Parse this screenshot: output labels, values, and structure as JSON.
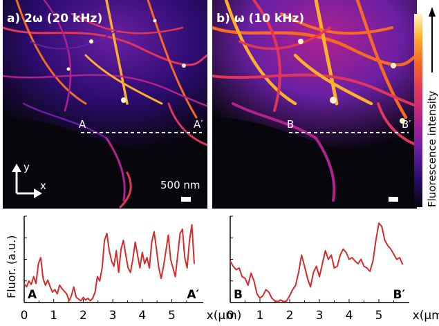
{
  "panels": {
    "a": {
      "title": "a) 2ω (20 kHz)",
      "scan_start": "A",
      "scan_end": "A′",
      "scalebar_text": "500 nm",
      "axis_y": "y",
      "axis_x": "x"
    },
    "b": {
      "title": "b) ω (10 kHz)",
      "scan_start": "B",
      "scan_end": "B′"
    }
  },
  "colorbar": {
    "label": "Fluorescence intensity",
    "colors": [
      "#08060d",
      "#2b0c6e",
      "#6a1fa3",
      "#b0228e",
      "#e1365a",
      "#f66a23",
      "#fdb02d",
      "#fff7c6"
    ]
  },
  "chart_data": [
    {
      "type": "line",
      "title": "",
      "xlabel": "x(μm)",
      "ylabel": "Fluor. (a.u.)",
      "start_label": "A",
      "end_label": "A′",
      "xlim": [
        0,
        5.9
      ],
      "ylim": [
        0,
        1
      ],
      "xticks": [
        "0",
        "1",
        "2",
        "3",
        "4",
        "5"
      ],
      "color": "#d42a2a",
      "x": [
        0.0,
        0.08,
        0.16,
        0.24,
        0.32,
        0.4,
        0.48,
        0.56,
        0.64,
        0.72,
        0.8,
        0.88,
        0.96,
        1.04,
        1.12,
        1.2,
        1.28,
        1.36,
        1.44,
        1.52,
        1.6,
        1.68,
        1.76,
        1.84,
        1.92,
        2.0,
        2.08,
        2.16,
        2.24,
        2.32,
        2.4,
        2.48,
        2.56,
        2.64,
        2.72,
        2.8,
        2.88,
        2.96,
        3.04,
        3.12,
        3.2,
        3.28,
        3.36,
        3.44,
        3.52,
        3.6,
        3.68,
        3.76,
        3.84,
        3.92,
        4.0,
        4.08,
        4.16,
        4.24,
        4.32,
        4.4,
        4.48,
        4.56,
        4.64,
        4.72,
        4.8,
        4.88,
        4.96,
        5.04,
        5.12,
        5.2,
        5.28,
        5.36,
        5.44,
        5.52,
        5.6,
        5.68,
        5.76
      ],
      "values": [
        0.22,
        0.18,
        0.25,
        0.21,
        0.3,
        0.22,
        0.45,
        0.52,
        0.28,
        0.2,
        0.26,
        0.18,
        0.12,
        0.15,
        0.1,
        0.2,
        0.16,
        0.13,
        0.1,
        0.02,
        0.08,
        0.18,
        0.06,
        0.04,
        0.02,
        0.06,
        0.03,
        0.05,
        0.02,
        0.05,
        0.12,
        0.3,
        0.25,
        0.4,
        0.72,
        0.8,
        0.6,
        0.48,
        0.42,
        0.6,
        0.35,
        0.62,
        0.72,
        0.55,
        0.4,
        0.35,
        0.5,
        0.7,
        0.55,
        0.4,
        0.58,
        0.45,
        0.52,
        0.4,
        0.7,
        0.82,
        0.62,
        0.4,
        0.28,
        0.42,
        0.6,
        0.78,
        0.5,
        0.4,
        0.3,
        0.55,
        0.8,
        0.85,
        0.52,
        0.4,
        0.72,
        0.9,
        0.45
      ]
    },
    {
      "type": "line",
      "title": "",
      "xlabel": "x(μm)",
      "ylabel": "",
      "start_label": "B",
      "end_label": "B′",
      "xlim": [
        0,
        5.9
      ],
      "ylim": [
        0,
        1
      ],
      "xticks": [
        "0",
        "1",
        "2",
        "3",
        "4",
        "5"
      ],
      "color": "#d42a2a",
      "x": [
        0.0,
        0.1,
        0.2,
        0.3,
        0.4,
        0.5,
        0.6,
        0.7,
        0.8,
        0.9,
        1.0,
        1.1,
        1.2,
        1.3,
        1.4,
        1.5,
        1.6,
        1.7,
        1.8,
        1.9,
        2.0,
        2.1,
        2.2,
        2.3,
        2.4,
        2.5,
        2.6,
        2.7,
        2.8,
        2.9,
        3.0,
        3.1,
        3.2,
        3.3,
        3.4,
        3.5,
        3.6,
        3.7,
        3.8,
        3.9,
        4.0,
        4.1,
        4.2,
        4.3,
        4.4,
        4.5,
        4.6,
        4.7,
        4.8,
        4.9,
        5.0,
        5.1,
        5.2,
        5.3,
        5.4,
        5.5,
        5.6,
        5.7,
        5.8
      ],
      "values": [
        0.48,
        0.42,
        0.38,
        0.4,
        0.3,
        0.28,
        0.2,
        0.34,
        0.25,
        0.1,
        0.05,
        0.08,
        0.15,
        0.12,
        0.05,
        0.02,
        0.01,
        0.03,
        0.01,
        0.02,
        0.08,
        0.15,
        0.2,
        0.35,
        0.55,
        0.42,
        0.28,
        0.18,
        0.35,
        0.42,
        0.3,
        0.45,
        0.6,
        0.5,
        0.55,
        0.4,
        0.42,
        0.55,
        0.62,
        0.58,
        0.5,
        0.52,
        0.48,
        0.45,
        0.5,
        0.42,
        0.4,
        0.36,
        0.48,
        0.72,
        0.92,
        0.88,
        0.72,
        0.66,
        0.62,
        0.56,
        0.5,
        0.52,
        0.44
      ]
    }
  ]
}
